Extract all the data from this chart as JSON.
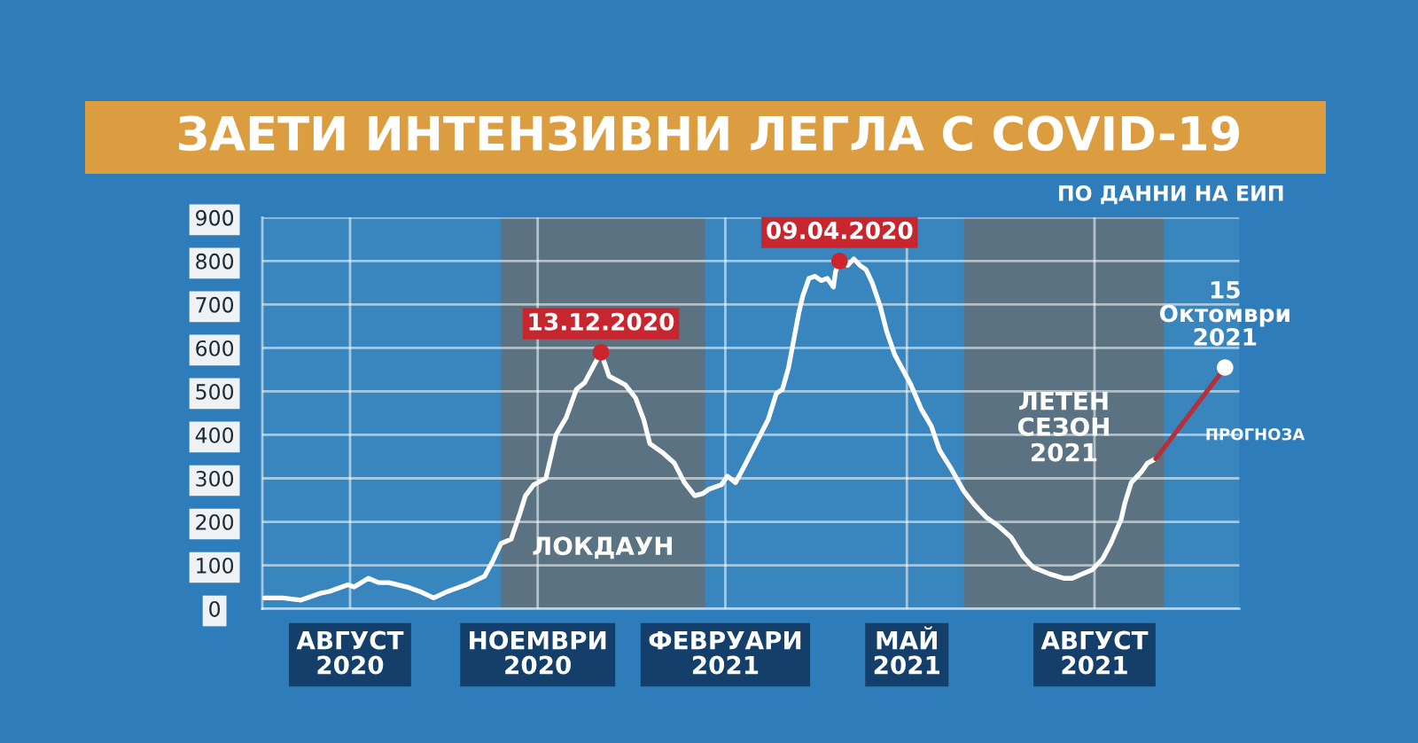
{
  "chart_data": {
    "type": "line",
    "title": "ЗАЕТИ ИНТЕНЗИВНИ ЛЕГЛА С COVID-19",
    "annotations": [
      "ПО ДАННИ НА ЕИП",
      {
        "text": "13.12.2020",
        "x": "2020-12-13",
        "y": 590
      },
      {
        "text": "09.04.2020",
        "x": "2021-04-09",
        "y": 800
      },
      {
        "text": "15\nОктомври\n2021",
        "x": "2021-10-15",
        "y": 555
      }
    ],
    "series": [
      {
        "color": "#ffffff",
        "x": [
          "2020-07-01",
          "2020-07-10",
          "2020-07-19",
          "2020-07-28",
          "2020-08-02",
          "2020-08-11",
          "2020-08-14",
          "2020-08-21",
          "2020-08-26",
          "2020-08-31",
          "2020-09-09",
          "2020-09-15",
          "2020-09-22",
          "2020-09-29",
          "2020-10-08",
          "2020-10-17",
          "2020-10-21",
          "2020-10-25",
          "2020-10-30",
          "2020-11-03",
          "2020-11-06",
          "2020-11-10",
          "2020-11-16",
          "2020-11-21",
          "2020-11-26",
          "2020-12-01",
          "2020-12-05",
          "2020-12-09",
          "2020-12-13",
          "2020-12-17",
          "2020-12-21",
          "2020-12-25",
          "2020-12-30",
          "2021-01-03",
          "2021-01-06",
          "2021-01-12",
          "2021-01-18",
          "2021-01-23",
          "2021-01-28",
          "2021-02-01",
          "2021-02-04",
          "2021-02-10",
          "2021-02-13",
          "2021-02-17",
          "2021-02-21",
          "2021-02-27",
          "2021-03-05",
          "2021-03-09",
          "2021-03-12",
          "2021-03-15",
          "2021-03-20",
          "2021-03-22",
          "2021-03-25",
          "2021-03-28",
          "2021-03-31",
          "2021-04-03",
          "2021-04-06",
          "2021-04-07",
          "2021-04-09",
          "2021-04-13",
          "2021-04-16",
          "2021-04-19",
          "2021-04-22",
          "2021-04-25",
          "2021-04-29",
          "2021-05-02",
          "2021-05-06",
          "2021-05-14",
          "2021-05-19",
          "2021-05-24",
          "2021-05-28",
          "2021-06-03",
          "2021-06-09",
          "2021-06-14",
          "2021-06-20",
          "2021-06-26",
          "2021-07-02",
          "2021-07-08",
          "2021-07-13",
          "2021-07-21",
          "2021-07-28",
          "2021-08-01",
          "2021-08-06",
          "2021-08-11",
          "2021-08-16",
          "2021-08-20",
          "2021-08-25",
          "2021-08-27",
          "2021-08-30",
          "2021-09-04",
          "2021-09-07",
          "2021-09-11"
        ],
        "values": [
          25,
          25,
          20,
          35,
          40,
          55,
          50,
          70,
          60,
          60,
          50,
          40,
          25,
          40,
          55,
          75,
          110,
          150,
          160,
          215,
          260,
          285,
          300,
          400,
          440,
          505,
          520,
          555,
          590,
          535,
          525,
          515,
          485,
          435,
          380,
          360,
          335,
          290,
          260,
          265,
          275,
          285,
          305,
          290,
          325,
          380,
          435,
          495,
          505,
          555,
          680,
          720,
          760,
          765,
          755,
          760,
          740,
          775,
          800,
          790,
          805,
          790,
          780,
          750,
          695,
          640,
          585,
          515,
          460,
          420,
          365,
          320,
          270,
          240,
          210,
          190,
          165,
          120,
          95,
          80,
          70,
          70,
          80,
          90,
          115,
          150,
          205,
          245,
          290,
          315,
          335,
          345
        ]
      },
      {
        "name": "ПРОГНОЗА",
        "color": "#b3313b",
        "x": [
          "2021-09-11",
          "2021-10-15"
        ],
        "values": [
          345,
          555
        ]
      },
      {
        "type": "scatter",
        "color": "#d0242c",
        "x": [
          "2020-12-13",
          "2021-04-09"
        ],
        "values": [
          590,
          800
        ]
      },
      {
        "type": "scatter",
        "color": "#ffffff",
        "x": [
          "2021-10-15"
        ],
        "values": [
          555
        ]
      }
    ],
    "bands": [
      {
        "axis": "x",
        "from": "2020-10-25",
        "to": "2021-02-02",
        "label": "ЛОКДАУН",
        "color": "#5a7282"
      },
      {
        "axis": "x",
        "from": "2021-06-09",
        "to": "2021-09-15",
        "label": "ЛЕТЕН\nСЕЗОН\n2021",
        "color": "#5a7282"
      }
    ],
    "xlim": [
      "2020-06-30",
      "2021-10-22"
    ],
    "xticks": [
      {
        "value": "2020-08-12",
        "label": "АВГУСТ\n2020"
      },
      {
        "value": "2020-11-12",
        "label": "НОЕМВРИ\n2020"
      },
      {
        "value": "2021-02-12",
        "label": "ФЕВРУАРИ\n2021"
      },
      {
        "value": "2021-05-12",
        "label": "МАЙ\n2021"
      },
      {
        "value": "2021-08-12",
        "label": "АВГУСТ\n2021"
      }
    ],
    "ylim": [
      0,
      900
    ],
    "yticks": [
      0,
      100,
      200,
      300,
      400,
      500,
      600,
      700,
      800,
      900
    ],
    "grid": true,
    "legend": false
  }
}
